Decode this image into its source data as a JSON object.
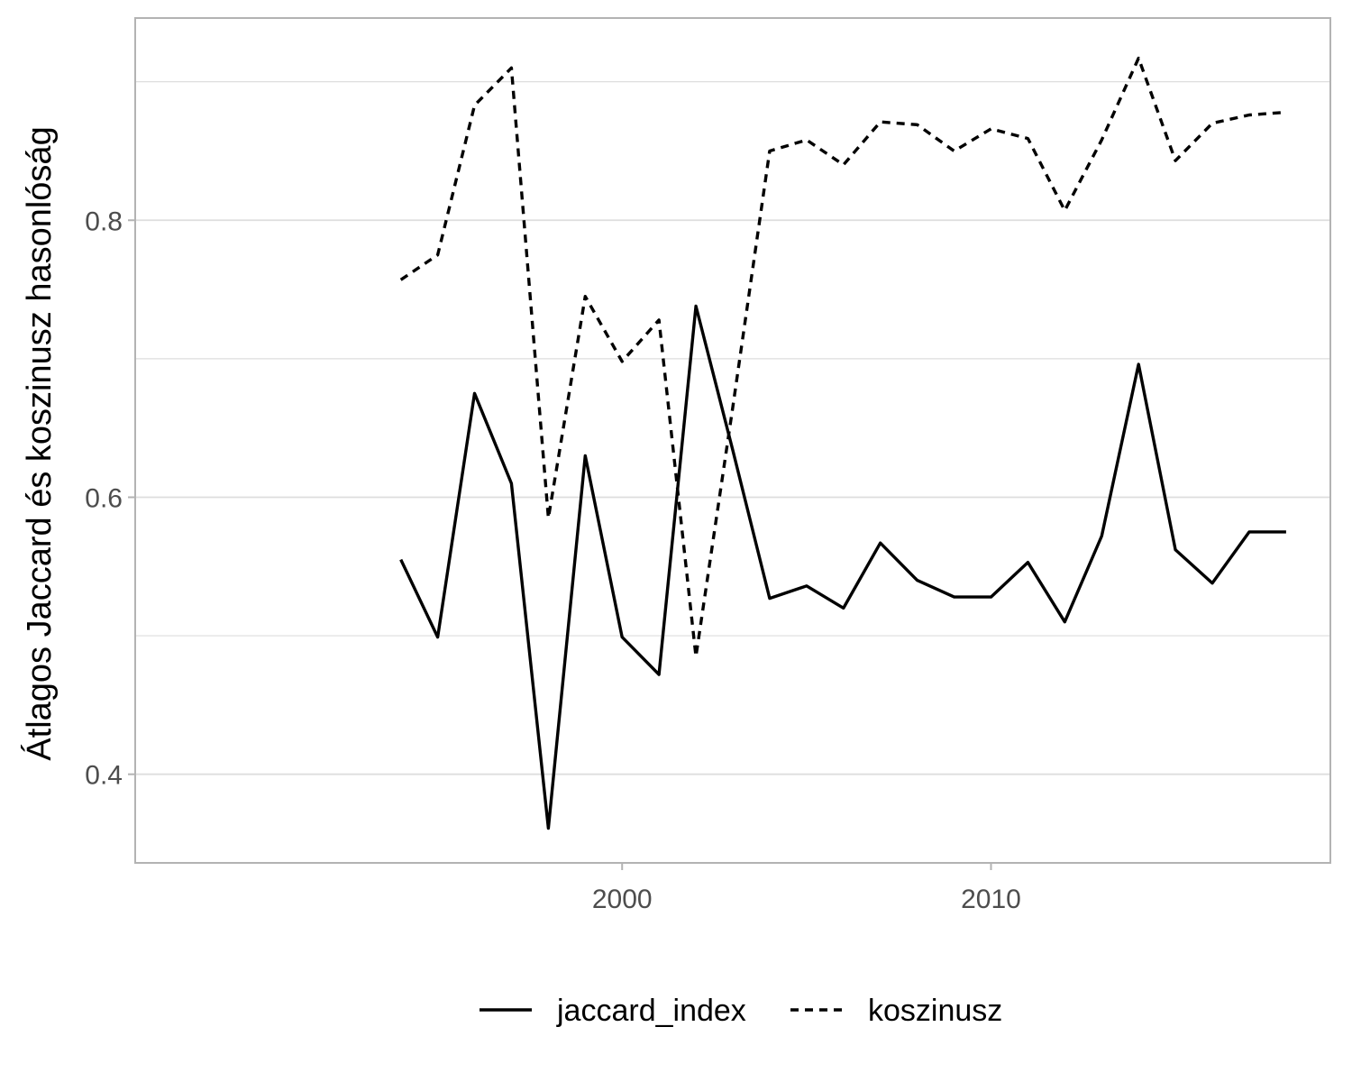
{
  "chart_data": {
    "type": "line",
    "title": "",
    "xlabel": "",
    "ylabel": "Átlagos Jaccard és koszinusz hasonlóság",
    "x": [
      1994,
      1995,
      1996,
      1997,
      1998,
      1999,
      2000,
      2001,
      2002,
      2003,
      2004,
      2005,
      2006,
      2007,
      2008,
      2009,
      2010,
      2011,
      2012,
      2013,
      2014,
      2015,
      2016,
      2017,
      2018
    ],
    "series": [
      {
        "name": "jaccard_index",
        "dash": "solid",
        "values": [
          0.555,
          0.499,
          0.675,
          0.61,
          0.361,
          0.63,
          0.499,
          0.472,
          0.738,
          0.634,
          0.527,
          0.536,
          0.52,
          0.567,
          0.54,
          0.528,
          0.528,
          0.553,
          0.51,
          0.572,
          0.696,
          0.562,
          0.538,
          0.575,
          0.575
        ]
      },
      {
        "name": "koszinusz",
        "dash": "dashed",
        "values": [
          0.757,
          0.775,
          0.883,
          0.91,
          0.585,
          0.745,
          0.698,
          0.728,
          0.485,
          0.665,
          0.85,
          0.858,
          0.84,
          0.871,
          0.869,
          0.85,
          0.866,
          0.859,
          0.807,
          0.858,
          0.917,
          0.843,
          0.87,
          0.876,
          0.878
        ]
      }
    ],
    "xlim": [
      1986.8,
      2019.2
    ],
    "ylim": [
      0.336,
      0.946
    ],
    "x_ticks": [
      2000,
      2010
    ],
    "x_tick_labels": [
      "2000",
      "2010"
    ],
    "y_ticks": [
      0.4,
      0.6,
      0.8
    ],
    "y_tick_labels": [
      "0.4",
      "0.6",
      "0.8"
    ],
    "y_minor_ticks": [
      0.5,
      0.7,
      0.9
    ],
    "grid": true,
    "legend_position": "bottom",
    "line_color": "#000000",
    "grid_color": "#dedede",
    "border_color": "#b3b3b3"
  }
}
